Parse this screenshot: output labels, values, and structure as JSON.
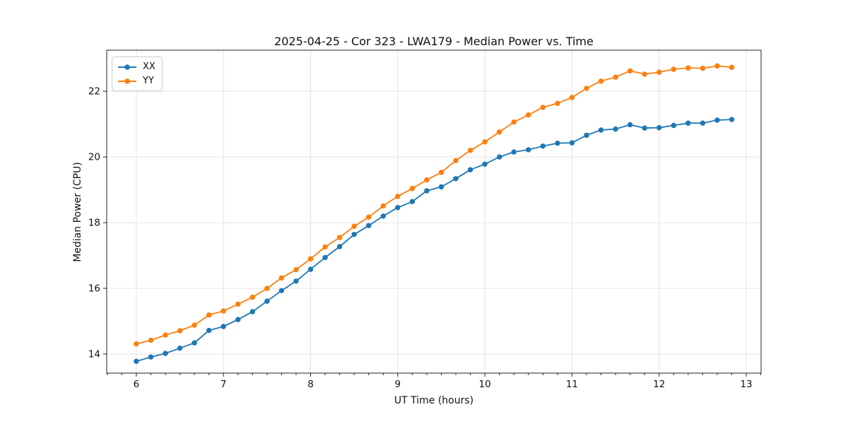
{
  "chart_data": {
    "type": "line",
    "title": "2025-04-25 - Cor 323 - LWA179 - Median Power vs. Time",
    "xlabel": "UT Time (hours)",
    "ylabel": "Median Power (CPU)",
    "grid": true,
    "legend_position": "upper left",
    "marker": "o",
    "xlim": [
      5.66,
      13.17
    ],
    "ylim": [
      13.42,
      23.25
    ],
    "xticks": [
      6,
      7,
      8,
      9,
      10,
      11,
      12,
      13
    ],
    "yticks": [
      14,
      16,
      18,
      20,
      22
    ],
    "x_minor_step_hours": 0.16667,
    "x": [
      6.0,
      6.1667,
      6.3333,
      6.5,
      6.6667,
      6.8333,
      7.0,
      7.1667,
      7.3333,
      7.5,
      7.6667,
      7.8333,
      8.0,
      8.1667,
      8.3333,
      8.5,
      8.6667,
      8.8333,
      9.0,
      9.1667,
      9.3333,
      9.5,
      9.6667,
      9.8333,
      10.0,
      10.1667,
      10.3333,
      10.5,
      10.6667,
      10.8333,
      11.0,
      11.1667,
      11.3333,
      11.5,
      11.6667,
      11.8333,
      12.0,
      12.1667,
      12.3333,
      12.5,
      12.6667,
      12.8333
    ],
    "series": [
      {
        "name": "XX",
        "color": "#1f77b4",
        "values": [
          13.78,
          13.91,
          14.02,
          14.18,
          14.34,
          14.72,
          14.84,
          15.05,
          15.29,
          15.61,
          15.93,
          16.22,
          16.58,
          16.94,
          17.27,
          17.64,
          17.91,
          18.2,
          18.46,
          18.64,
          18.97,
          19.09,
          19.34,
          19.61,
          19.78,
          20.0,
          20.15,
          20.22,
          20.33,
          20.42,
          20.43,
          20.66,
          20.82,
          20.85,
          20.98,
          20.88,
          20.89,
          20.96,
          21.03,
          21.03,
          21.12,
          21.14
        ]
      },
      {
        "name": "YY",
        "color": "#ff7f0e",
        "values": [
          14.31,
          14.42,
          14.58,
          14.71,
          14.88,
          15.19,
          15.31,
          15.52,
          15.73,
          16.0,
          16.32,
          16.57,
          16.9,
          17.26,
          17.55,
          17.89,
          18.17,
          18.51,
          18.8,
          19.04,
          19.3,
          19.53,
          19.89,
          20.2,
          20.46,
          20.76,
          21.06,
          21.28,
          21.51,
          21.63,
          21.81,
          22.09,
          22.31,
          22.43,
          22.62,
          22.52,
          22.58,
          22.67,
          22.71,
          22.7,
          22.77,
          22.73
        ]
      }
    ],
    "style": {
      "grid_color": "#e3e3e3",
      "spine_color": "#222222",
      "tick_color": "#222222",
      "text_color": "#111111"
    }
  }
}
